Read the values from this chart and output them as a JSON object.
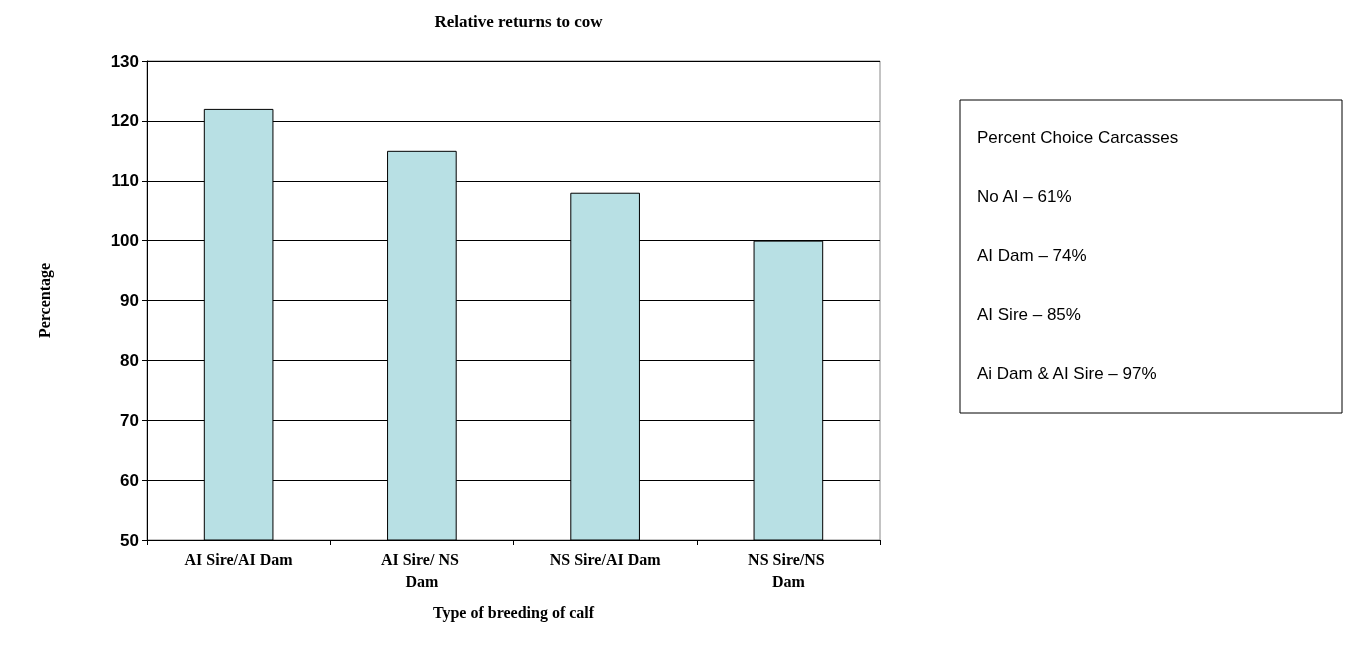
{
  "chart_data": {
    "type": "bar",
    "title": "Relative returns to cow",
    "xlabel": "Type of breeding of calf",
    "ylabel": "Percentage",
    "categories": [
      "AI Sire/AI Dam",
      "AI Sire/ NS Dam",
      "NS Sire/AI Dam",
      "NS Sire/NS Dam"
    ],
    "values": [
      122,
      115,
      108,
      100
    ],
    "color": "#b8e0e4",
    "ylim": [
      50,
      130
    ],
    "yticks": [
      50,
      60,
      70,
      80,
      90,
      100,
      110,
      120,
      130
    ],
    "grid": "y",
    "annotations": [
      "Percent Choice Carcasses",
      "No AI – 61%",
      "AI Dam – 74%",
      "AI Sire – 85%",
      "Ai Dam & AI Sire – 97%"
    ]
  }
}
